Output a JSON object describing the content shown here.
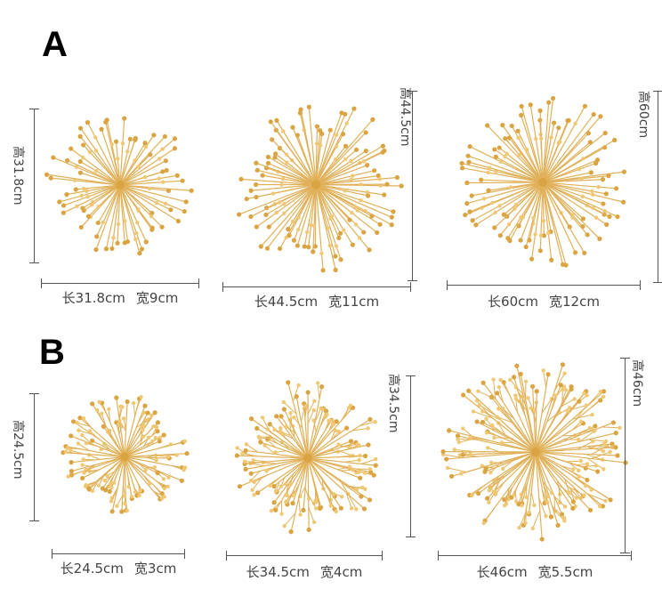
{
  "sections": [
    {
      "label": "A",
      "items": [
        {
          "length": "长31.8cm",
          "width": "宽9cm",
          "height": "高31.8cm",
          "style": "spiky"
        },
        {
          "length": "长44.5cm",
          "width": "宽11cm",
          "height": "高44.5cm",
          "style": "spiky"
        },
        {
          "length": "长60cm",
          "width": "宽12cm",
          "height": "高60cm",
          "style": "spiky"
        }
      ]
    },
    {
      "label": "B",
      "items": [
        {
          "length": "长24.5cm",
          "width": "宽3cm",
          "height": "高24.5cm",
          "style": "branchy"
        },
        {
          "length": "长34.5cm",
          "width": "宽4cm",
          "height": "高34.5cm",
          "style": "branchy"
        },
        {
          "length": "长46cm",
          "width": "宽5.5cm",
          "height": "高46cm",
          "style": "branchy"
        }
      ]
    }
  ],
  "colors": {
    "gold": "#d9a441",
    "gold_light": "#f0c874",
    "stroke": "#e0b15a",
    "line": "#555555"
  }
}
